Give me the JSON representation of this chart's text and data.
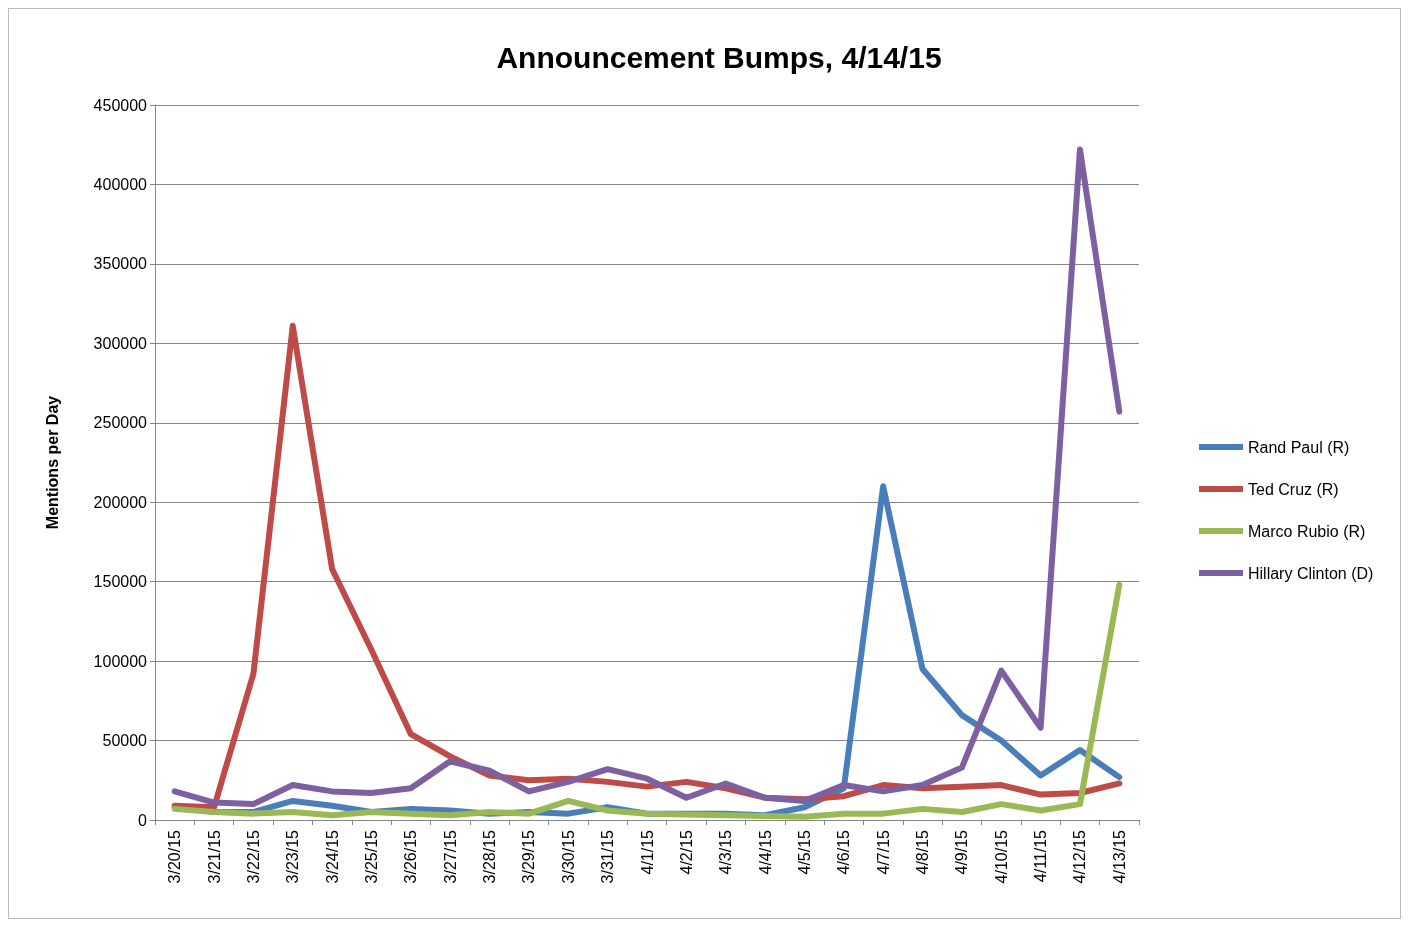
{
  "chart_data": {
    "type": "line",
    "title": "Announcement Bumps, 4/14/15",
    "ylabel": "Mentions per Day",
    "categories": [
      "3/20/15",
      "3/21/15",
      "3/22/15",
      "3/23/15",
      "3/24/15",
      "3/25/15",
      "3/26/15",
      "3/27/15",
      "3/28/15",
      "3/29/15",
      "3/30/15",
      "3/31/15",
      "4/1/15",
      "4/2/15",
      "4/3/15",
      "4/4/15",
      "4/5/15",
      "4/6/15",
      "4/7/15",
      "4/8/15",
      "4/9/15",
      "4/10/15",
      "4/11/15",
      "4/12/15",
      "4/13/15"
    ],
    "series": [
      {
        "name": "Rand Paul (R)",
        "color": "#4a7ebb",
        "values": [
          8000,
          5000,
          5000,
          12000,
          9000,
          5000,
          7000,
          6000,
          4000,
          5000,
          4000,
          8000,
          4000,
          4000,
          4000,
          3000,
          8000,
          20000,
          210000,
          95000,
          66000,
          50000,
          28000,
          44000,
          27000
        ]
      },
      {
        "name": "Ted Cruz (R)",
        "color": "#be4b48",
        "values": [
          9000,
          8000,
          92000,
          311000,
          158000,
          107000,
          54000,
          40000,
          28000,
          25000,
          26000,
          24000,
          21000,
          24000,
          20000,
          14000,
          13000,
          15000,
          22000,
          20000,
          21000,
          22000,
          16000,
          17000,
          23000
        ]
      },
      {
        "name": "Marco Rubio (R)",
        "color": "#98b954",
        "values": [
          7000,
          5000,
          4000,
          5000,
          3000,
          5000,
          4000,
          3000,
          5000,
          4000,
          12000,
          6000,
          4000,
          3500,
          3000,
          2500,
          2000,
          4000,
          4000,
          7000,
          5000,
          10000,
          6000,
          10000,
          148000
        ]
      },
      {
        "name": "Hillary Clinton (D)",
        "color": "#7d60a0",
        "values": [
          18000,
          11000,
          10000,
          22000,
          18000,
          17000,
          20000,
          37000,
          31000,
          18000,
          24000,
          32000,
          26000,
          14000,
          23000,
          14000,
          12000,
          22000,
          18000,
          22000,
          33000,
          94000,
          58000,
          422000,
          257000
        ]
      }
    ],
    "ylim": [
      0,
      450000
    ],
    "yticks": [
      0,
      50000,
      100000,
      150000,
      200000,
      250000,
      300000,
      350000,
      400000,
      450000
    ],
    "grid": "y",
    "legend": "right",
    "marker": "none",
    "line_style": "solid"
  }
}
